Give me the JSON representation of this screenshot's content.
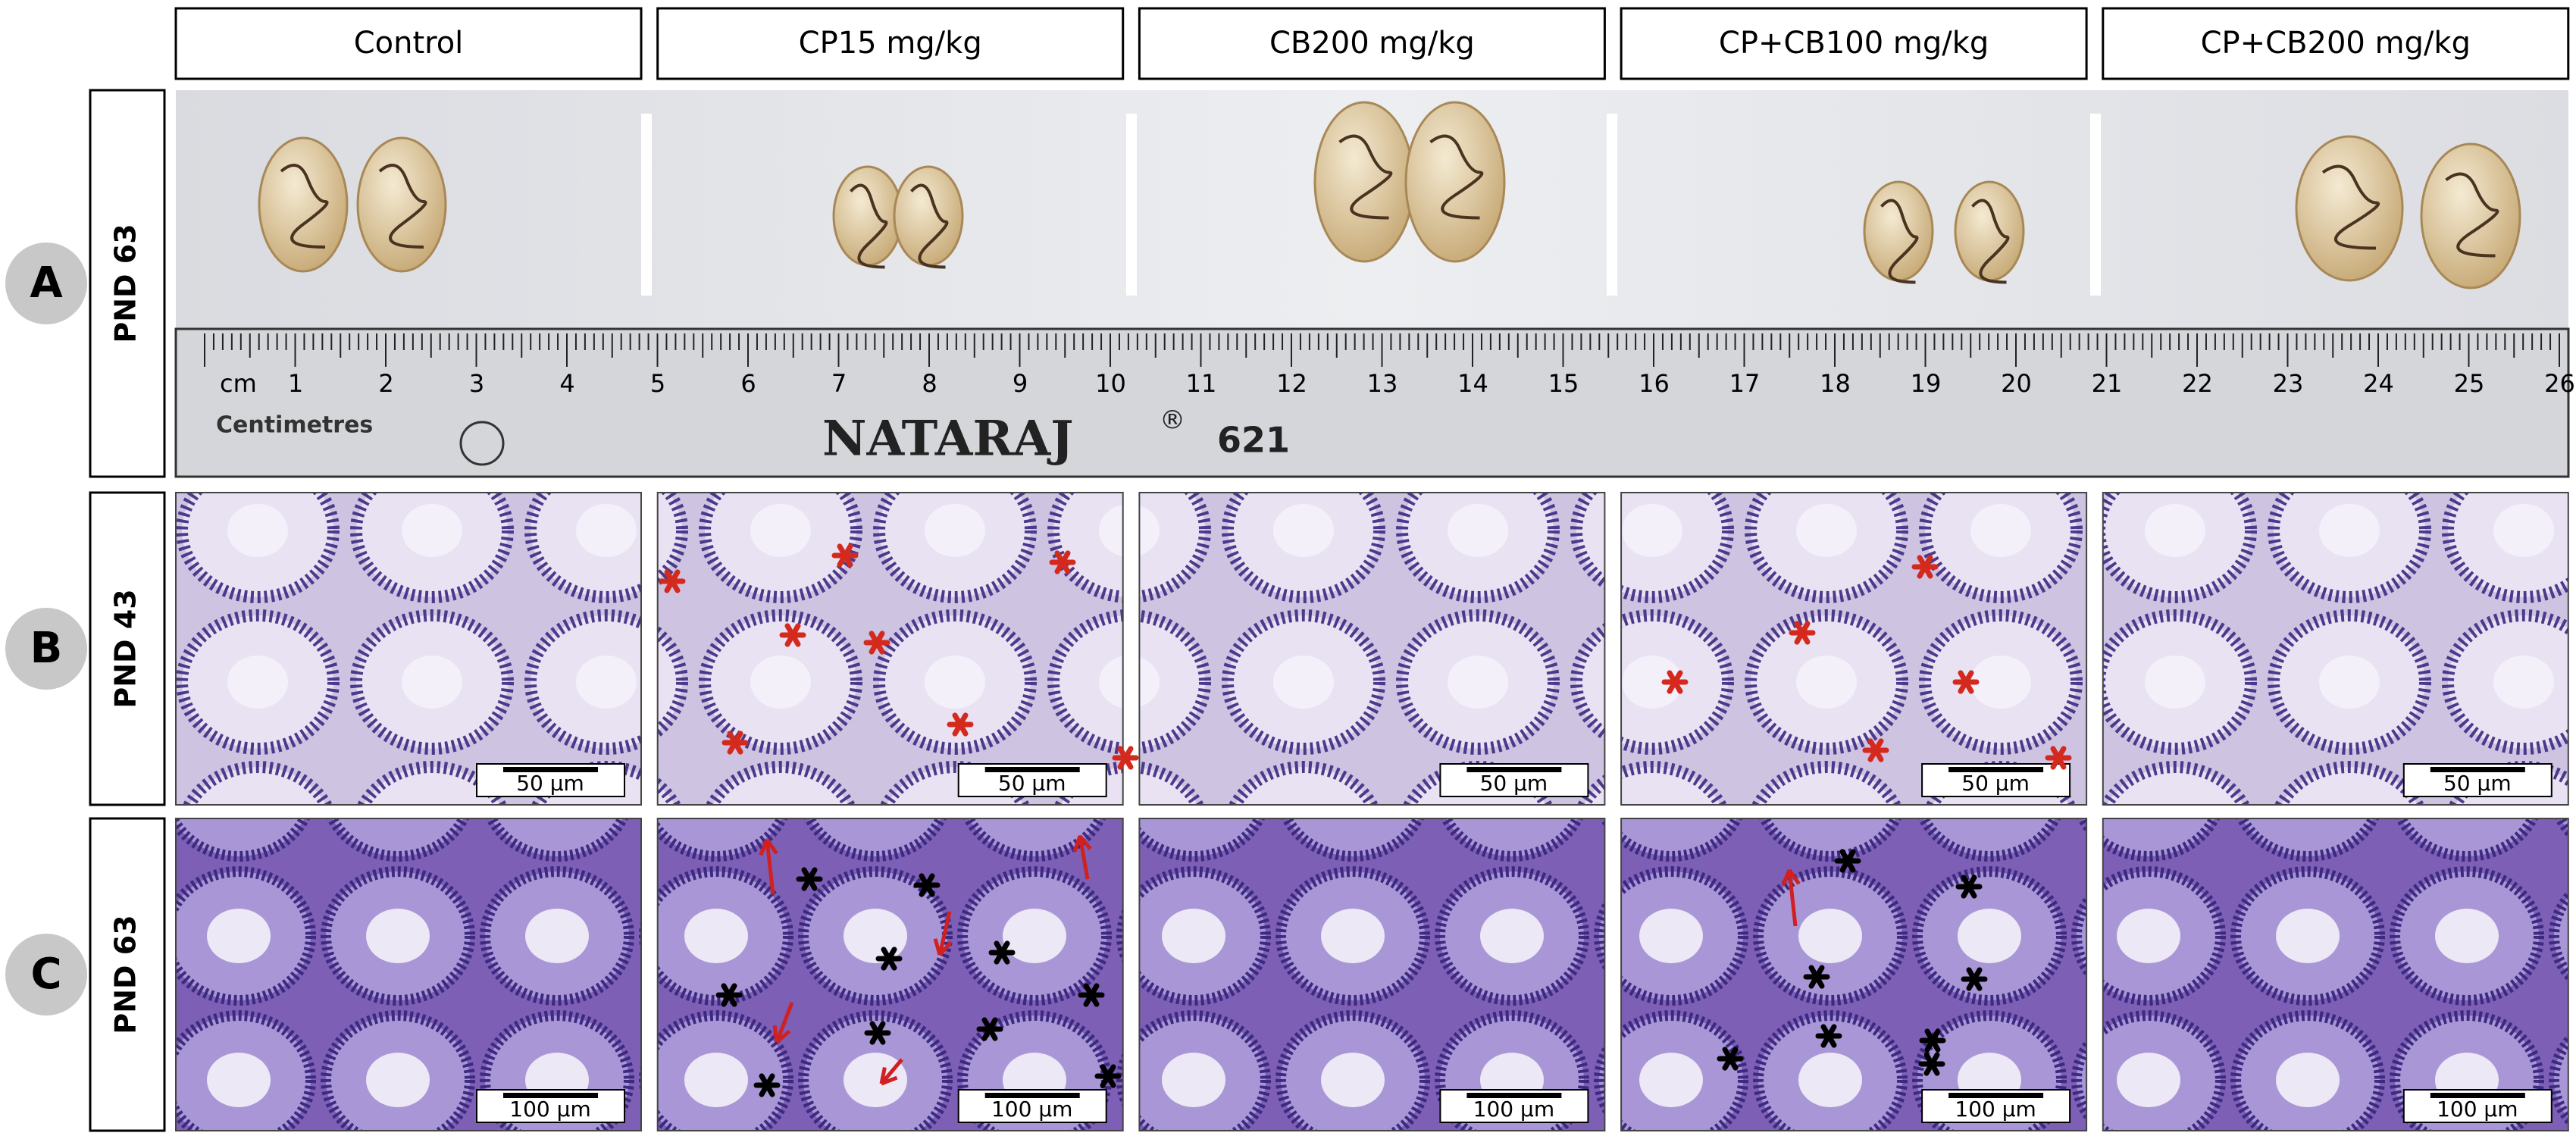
{
  "columns": [
    "Control",
    "CP15 mg/kg",
    "CB200 mg/kg",
    "CP+CB100 mg/kg",
    "CP+CB200 mg/kg"
  ],
  "rows": [
    {
      "letter": "A",
      "label": "PND 63"
    },
    {
      "letter": "B",
      "label": "PND 43"
    },
    {
      "letter": "C",
      "label": "PND 63"
    }
  ],
  "scale_bars": {
    "row_b": [
      "50 µm",
      "50 µm",
      "50 µm",
      "50 µm",
      "50 µm"
    ],
    "row_c": [
      "100 µm",
      "100 µm",
      "100 µm",
      "100 µm",
      "100 µm"
    ]
  },
  "ruler": {
    "unit": "cm",
    "numbers": [
      "1",
      "2",
      "3",
      "4",
      "5",
      "6",
      "7",
      "8",
      "9",
      "10",
      "11",
      "12",
      "13",
      "14",
      "15",
      "16",
      "17",
      "18",
      "19",
      "20",
      "21",
      "22",
      "23",
      "24",
      "25",
      "26"
    ],
    "caption": "Centimetres",
    "brand": "NATARAJ",
    "registered": "®",
    "model": "621"
  }
}
